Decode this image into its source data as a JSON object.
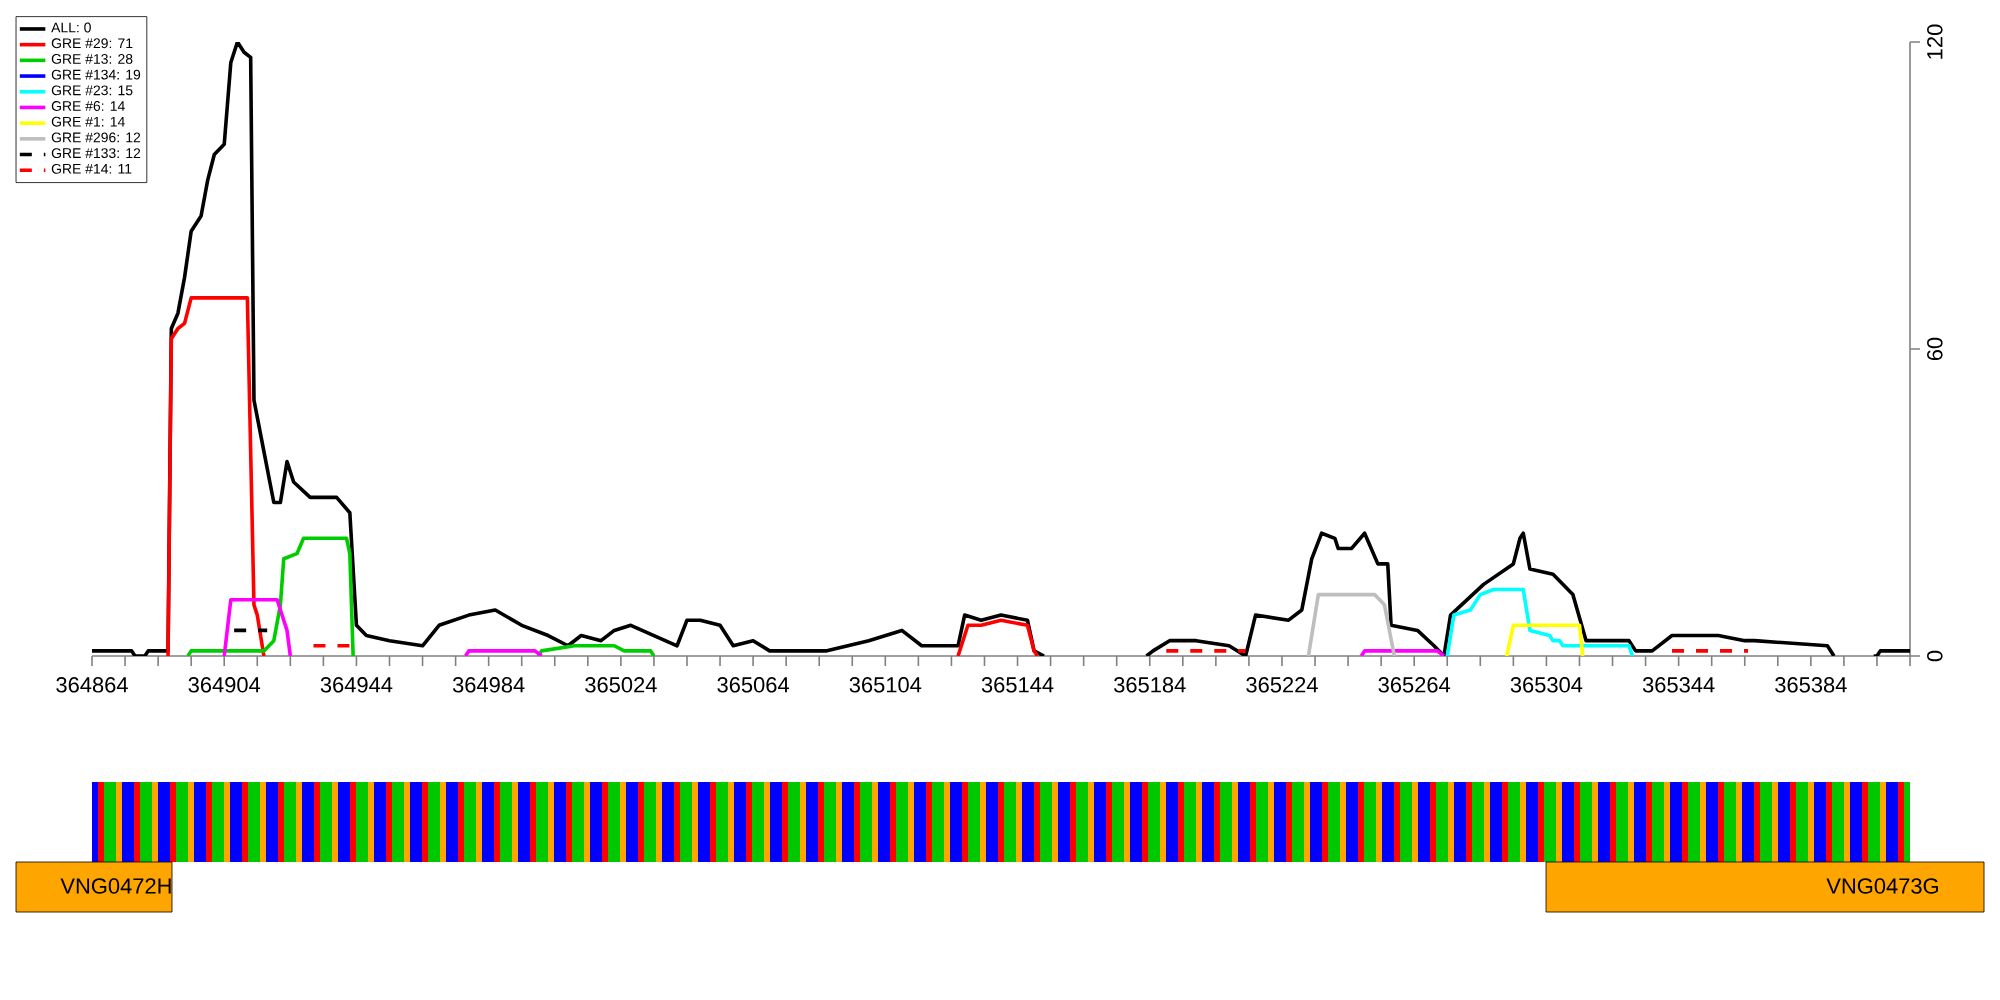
{
  "chart_data": [
    {
      "type": "line",
      "legend": "top left",
      "xlim": [
        364864,
        365414
      ],
      "ylim": [
        0,
        120
      ],
      "yticks": [
        0,
        60,
        120
      ],
      "grid": false,
      "xticks": [
        364864,
        {
          "value": 364874,
          "label": null
        },
        {
          "value": 364884,
          "label": null
        },
        {
          "value": 364894,
          "label": null
        },
        364904,
        {
          "value": 364914,
          "label": null
        },
        {
          "value": 364924,
          "label": null
        },
        {
          "value": 364934,
          "label": null
        },
        364944,
        {
          "value": 364954,
          "label": null
        },
        {
          "value": 364964,
          "label": null
        },
        {
          "value": 364974,
          "label": null
        },
        364984,
        {
          "value": 364994,
          "label": null
        },
        {
          "value": 365004,
          "label": null
        },
        {
          "value": 365014,
          "label": null
        },
        365024,
        {
          "value": 365034,
          "label": null
        },
        {
          "value": 365044,
          "label": null
        },
        {
          "value": 365054,
          "label": null
        },
        365064,
        {
          "value": 365074,
          "label": null
        },
        {
          "value": 365084,
          "label": null
        },
        {
          "value": 365094,
          "label": null
        },
        365104,
        {
          "value": 365114,
          "label": null
        },
        {
          "value": 365124,
          "label": null
        },
        {
          "value": 365134,
          "label": null
        },
        365144,
        {
          "value": 365154,
          "label": null
        },
        {
          "value": 365164,
          "label": null
        },
        {
          "value": 365174,
          "label": null
        },
        365184,
        {
          "value": 365194,
          "label": null
        },
        {
          "value": 365204,
          "label": null
        },
        {
          "value": 365214,
          "label": null
        },
        365224,
        {
          "value": 365234,
          "label": null
        },
        {
          "value": 365244,
          "label": null
        },
        {
          "value": 365254,
          "label": null
        },
        365264,
        {
          "value": 365274,
          "label": null
        },
        {
          "value": 365284,
          "label": null
        },
        {
          "value": 365294,
          "label": null
        },
        365304,
        {
          "value": 365314,
          "label": null
        },
        {
          "value": 365324,
          "label": null
        },
        {
          "value": 365334,
          "label": null
        },
        365344,
        {
          "value": 365354,
          "label": null
        },
        {
          "value": 365364,
          "label": null
        },
        {
          "value": 365374,
          "label": null
        },
        365384,
        {
          "value": 365394,
          "label": null
        },
        {
          "value": 365404,
          "label": null
        },
        {
          "value": 365414,
          "label": null
        }
      ],
      "series": [
        {
          "name": "ALL: 0",
          "color": "#000000",
          "x": [
            364864,
            364876,
            364877,
            364880,
            364881,
            364887,
            364888,
            364890,
            364892,
            364894,
            364897,
            364899,
            364901,
            364904,
            364906,
            364908,
            364910,
            364912,
            364913,
            364916,
            364919,
            364921,
            364923,
            364925,
            364930,
            364938,
            364942,
            364944,
            364947,
            364954,
            364964,
            364969,
            364978,
            364986,
            364994,
            365002,
            365008,
            365012,
            365018,
            365022,
            365027,
            365034,
            365041,
            365044,
            365048,
            365054,
            365058,
            365064,
            365069,
            365086,
            365099,
            365109,
            365115,
            365126,
            365128,
            365133,
            365139,
            365147,
            365149,
            365152,
            365153,
            365183,
            365185,
            365190,
            365198,
            365208,
            365213,
            365216,
            365226,
            365230,
            365233,
            365236,
            365240,
            365241,
            365245,
            365249,
            365253,
            365256,
            365257,
            365265,
            365270,
            365273,
            365275,
            365285,
            365294,
            365296,
            365297,
            365299,
            365306,
            365312,
            365316,
            365329,
            365331,
            365336,
            365342,
            365356,
            365364,
            365367,
            365389,
            365391,
            365392,
            365403,
            365404,
            365405,
            365414
          ],
          "values": [
            1,
            1,
            0,
            0,
            1,
            1,
            64,
            67,
            74,
            83,
            86,
            93,
            98,
            100,
            116,
            120,
            118,
            117,
            50,
            40,
            30,
            30,
            38,
            34,
            31,
            31,
            28,
            6,
            4,
            3,
            2,
            6,
            8,
            9,
            6,
            4,
            2,
            4,
            3,
            5,
            6,
            4,
            2,
            7,
            7,
            6,
            2,
            3,
            1,
            1,
            3,
            5,
            2,
            2,
            8,
            7,
            8,
            7,
            1,
            0,
            null,
            0,
            1,
            3,
            3,
            2,
            0,
            8,
            7,
            9,
            19,
            24,
            23,
            21,
            21,
            24,
            18,
            18,
            6,
            5,
            2,
            0,
            8,
            14,
            18,
            23,
            24,
            17,
            16,
            12,
            3,
            3,
            1,
            1,
            4,
            4,
            3,
            3,
            2,
            0,
            null,
            0,
            0,
            1,
            1
          ]
        },
        {
          "name": "GRE #29: 71",
          "color": "#ff0000",
          "x": [
            364887,
            364888,
            364890,
            364892,
            364894,
            364911,
            364913,
            364914,
            364916,
            364917,
            365126,
            365129,
            365133,
            365139,
            365147,
            365149,
            365150
          ],
          "values": [
            0,
            62,
            64,
            65,
            70,
            70,
            10,
            8,
            0,
            null,
            0,
            6,
            6,
            7,
            6,
            1,
            0
          ]
        },
        {
          "name": "GRE #13: 28",
          "color": "#00cd00",
          "x": [
            364893,
            364894,
            364916,
            364919,
            364921,
            364922,
            364926,
            364928,
            364941,
            364942,
            364943,
            364944,
            364999,
            365000,
            365010,
            365022,
            365025,
            365033,
            365034
          ],
          "values": [
            0,
            1,
            1,
            3,
            10,
            19,
            20,
            23,
            23,
            20,
            0,
            null,
            0,
            1,
            2,
            2,
            1,
            1,
            0
          ]
        },
        {
          "name": "GRE #134: 19",
          "color": "#0000ff"
        },
        {
          "name": "GRE #23: 15",
          "color": "#00ffff",
          "x": [
            365274,
            365276,
            365281,
            365284,
            365288,
            365297,
            365299,
            365305,
            365306,
            365308,
            365309,
            365329,
            365330
          ],
          "values": [
            0,
            8,
            9,
            12,
            13,
            13,
            5,
            4,
            3,
            3,
            2,
            2,
            0
          ]
        },
        {
          "name": "GRE #6: 14",
          "color": "#ff00ff",
          "x": [
            364904,
            364906,
            364920,
            364923,
            364924,
            364925,
            364977,
            364978,
            364998,
            365000,
            365001,
            365248,
            365249,
            365271,
            365273
          ],
          "values": [
            0,
            11,
            11,
            5,
            0,
            null,
            0,
            1,
            1,
            0,
            null,
            0,
            1,
            1,
            0
          ]
        },
        {
          "name": "GRE #1: 14",
          "color": "#ffff00",
          "x": [
            365292,
            365294,
            365314,
            365315
          ],
          "values": [
            0,
            6,
            6,
            0
          ]
        },
        {
          "name": "GRE #296: 12",
          "color": "#bebebe",
          "x": [
            365232,
            365235,
            365252,
            365255,
            365258
          ],
          "values": [
            0,
            12,
            12,
            10,
            0
          ]
        },
        {
          "name": "GRE #133: 12",
          "color": "#000000",
          "line_style": "dashed",
          "x": [
            364907,
            364917
          ],
          "values": [
            5,
            5
          ]
        },
        {
          "name": "GRE #14: 11",
          "color": "#ff0000",
          "line_style": "dashed",
          "x": [
            364931,
            364944,
            364945,
            365189,
            365213,
            365214,
            365342,
            365365
          ],
          "values": [
            2,
            2,
            null,
            1,
            1,
            null,
            1,
            1
          ]
        }
      ]
    },
    {
      "type": "other",
      "annotations": [
        "VNG0472H",
        "VNG0473G"
      ]
    }
  ]
}
